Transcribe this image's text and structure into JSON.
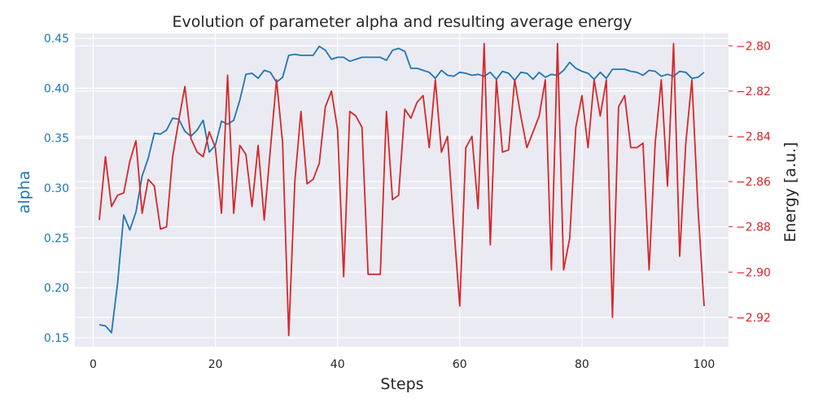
{
  "chart_data": {
    "type": "line",
    "title": "Evolution of parameter alpha and resulting average energy",
    "xlabel": "Steps",
    "ylabel_left": "alpha",
    "ylabel_right": "Energy [a.u.]",
    "xlim": [
      -3,
      104
    ],
    "ylim_left": [
      0.141,
      0.455
    ],
    "ylim_right": [
      -2.933,
      -2.7945
    ],
    "x_ticks": [
      0,
      20,
      40,
      60,
      80,
      100
    ],
    "left_ticks": [
      0.15,
      0.2,
      0.25,
      0.3,
      0.35,
      0.4,
      0.45
    ],
    "right_ticks": [
      -2.92,
      -2.9,
      -2.88,
      -2.86,
      -2.84,
      -2.82,
      -2.8
    ],
    "grid": true,
    "colors": {
      "alpha": "#1f77b4",
      "energy": "#d62728",
      "background": "#eaeaf2",
      "grid": "#ffffff"
    },
    "series": [
      {
        "axis": "left",
        "color": "#1f77b4",
        "x": [
          1,
          2,
          3,
          4,
          5,
          6,
          7,
          8,
          9,
          10,
          11,
          12,
          13,
          14,
          15,
          16,
          17,
          18,
          19,
          20,
          21,
          22,
          23,
          24,
          25,
          26,
          27,
          28,
          29,
          30,
          31,
          32,
          33,
          34,
          35,
          36,
          37,
          38,
          39,
          40,
          41,
          42,
          43,
          44,
          45,
          46,
          47,
          48,
          49,
          50,
          51,
          52,
          53,
          54,
          55,
          56,
          57,
          58,
          59,
          60,
          61,
          62,
          63,
          64,
          65,
          66,
          67,
          68,
          69,
          70,
          71,
          72,
          73,
          74,
          75,
          76,
          77,
          78,
          79,
          80,
          81,
          82,
          83,
          84,
          85,
          86,
          87,
          88,
          89,
          90,
          91,
          92,
          93,
          94,
          95,
          96,
          97,
          98,
          99,
          100
        ],
        "values": [
          0.163,
          0.162,
          0.155,
          0.205,
          0.273,
          0.258,
          0.276,
          0.312,
          0.33,
          0.355,
          0.354,
          0.358,
          0.37,
          0.369,
          0.357,
          0.352,
          0.358,
          0.368,
          0.336,
          0.343,
          0.367,
          0.364,
          0.368,
          0.388,
          0.414,
          0.415,
          0.41,
          0.418,
          0.416,
          0.406,
          0.411,
          0.433,
          0.434,
          0.433,
          0.433,
          0.433,
          0.442,
          0.438,
          0.429,
          0.431,
          0.431,
          0.427,
          0.429,
          0.431,
          0.431,
          0.431,
          0.431,
          0.428,
          0.438,
          0.44,
          0.437,
          0.42,
          0.42,
          0.418,
          0.416,
          0.41,
          0.418,
          0.413,
          0.412,
          0.416,
          0.415,
          0.413,
          0.414,
          0.412,
          0.416,
          0.409,
          0.417,
          0.415,
          0.408,
          0.416,
          0.415,
          0.409,
          0.416,
          0.411,
          0.414,
          0.413,
          0.418,
          0.426,
          0.42,
          0.417,
          0.415,
          0.409,
          0.416,
          0.41,
          0.419,
          0.419,
          0.419,
          0.417,
          0.416,
          0.413,
          0.418,
          0.417,
          0.412,
          0.414,
          0.412,
          0.417,
          0.416,
          0.41,
          0.411,
          0.416
        ]
      },
      {
        "axis": "right",
        "color": "#d62728",
        "x": [
          1,
          2,
          3,
          4,
          5,
          6,
          7,
          8,
          9,
          10,
          11,
          12,
          13,
          14,
          15,
          16,
          17,
          18,
          19,
          20,
          21,
          22,
          23,
          24,
          25,
          26,
          27,
          28,
          29,
          30,
          31,
          32,
          33,
          34,
          35,
          36,
          37,
          38,
          39,
          40,
          41,
          42,
          43,
          44,
          45,
          46,
          47,
          48,
          49,
          50,
          51,
          52,
          53,
          54,
          55,
          56,
          57,
          58,
          59,
          60,
          61,
          62,
          63,
          64,
          65,
          66,
          67,
          68,
          69,
          70,
          71,
          72,
          73,
          74,
          75,
          76,
          77,
          78,
          79,
          80,
          81,
          82,
          83,
          84,
          85,
          86,
          87,
          88,
          89,
          90,
          91,
          92,
          93,
          94,
          95,
          96,
          97,
          98,
          99,
          100
        ],
        "values": [
          -2.877,
          -2.849,
          -2.871,
          -2.866,
          -2.865,
          -2.851,
          -2.842,
          -2.874,
          -2.859,
          -2.862,
          -2.881,
          -2.88,
          -2.849,
          -2.833,
          -2.818,
          -2.841,
          -2.847,
          -2.849,
          -2.838,
          -2.845,
          -2.874,
          -2.813,
          -2.874,
          -2.844,
          -2.848,
          -2.871,
          -2.844,
          -2.877,
          -2.846,
          -2.815,
          -2.843,
          -2.928,
          -2.86,
          -2.829,
          -2.861,
          -2.859,
          -2.852,
          -2.827,
          -2.82,
          -2.837,
          -2.902,
          -2.829,
          -2.831,
          -2.836,
          -2.901,
          -2.901,
          -2.901,
          -2.829,
          -2.868,
          -2.866,
          -2.828,
          -2.832,
          -2.825,
          -2.822,
          -2.845,
          -2.815,
          -2.847,
          -2.84,
          -2.879,
          -2.915,
          -2.845,
          -2.84,
          -2.872,
          -2.799,
          -2.888,
          -2.815,
          -2.847,
          -2.846,
          -2.815,
          -2.831,
          -2.845,
          -2.838,
          -2.831,
          -2.815,
          -2.899,
          -2.799,
          -2.899,
          -2.885,
          -2.836,
          -2.822,
          -2.845,
          -2.815,
          -2.831,
          -2.815,
          -2.92,
          -2.827,
          -2.822,
          -2.845,
          -2.845,
          -2.843,
          -2.899,
          -2.843,
          -2.815,
          -2.862,
          -2.799,
          -2.893,
          -2.843,
          -2.815,
          -2.872,
          -2.915
        ]
      }
    ]
  }
}
